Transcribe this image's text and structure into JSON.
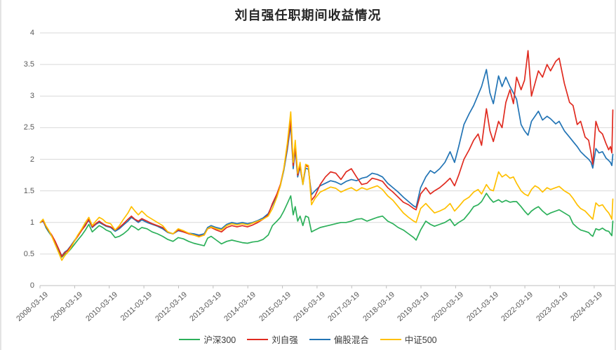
{
  "title": "刘自强任职期间收益情况",
  "colors": {
    "grid": "#d9d9d9",
    "axis": "#bfbfbf",
    "tick_text": "#595959",
    "title_text": "#262626"
  },
  "chart_data": {
    "type": "line",
    "title": "刘自强任职期间收益情况",
    "xlabel": "",
    "ylabel": "",
    "ylim": [
      0,
      4
    ],
    "y_ticks": [
      0,
      0.5,
      1,
      1.5,
      2,
      2.5,
      3,
      3.5,
      4
    ],
    "grid": "horizontal",
    "legend_position": "bottom",
    "x_range": [
      2008.21,
      2024.8
    ],
    "x_ticks": [
      {
        "label": "2008-03-19",
        "year": 2008.21
      },
      {
        "label": "2009-03-19",
        "year": 2009.21
      },
      {
        "label": "2010-03-19",
        "year": 2010.21
      },
      {
        "label": "2011-03-19",
        "year": 2011.21
      },
      {
        "label": "2012-03-19",
        "year": 2012.21
      },
      {
        "label": "2013-03-19",
        "year": 2013.21
      },
      {
        "label": "2014-03-19",
        "year": 2014.21
      },
      {
        "label": "2015-03-19",
        "year": 2015.21
      },
      {
        "label": "2016-03-19",
        "year": 2016.21
      },
      {
        "label": "2017-03-19",
        "year": 2017.21
      },
      {
        "label": "2018-03-19",
        "year": 2018.21
      },
      {
        "label": "2019-03-19",
        "year": 2019.21
      },
      {
        "label": "2020-03-19",
        "year": 2020.21
      },
      {
        "label": "2021-03-19",
        "year": 2021.21
      },
      {
        "label": "2022-03-19",
        "year": 2022.21
      },
      {
        "label": "2023-03-19",
        "year": 2023.21
      },
      {
        "label": "2024-03-19",
        "year": 2024.21
      }
    ],
    "x": [
      2008.22,
      2008.3,
      2008.38,
      2008.46,
      2008.55,
      2008.65,
      2008.75,
      2008.84,
      2008.92,
      2009.0,
      2009.1,
      2009.2,
      2009.3,
      2009.42,
      2009.52,
      2009.62,
      2009.72,
      2009.82,
      2009.92,
      2010.02,
      2010.12,
      2010.25,
      2010.38,
      2010.5,
      2010.62,
      2010.75,
      2010.85,
      2010.95,
      2011.05,
      2011.15,
      2011.3,
      2011.45,
      2011.6,
      2011.75,
      2011.9,
      2012.05,
      2012.2,
      2012.35,
      2012.5,
      2012.65,
      2012.8,
      2012.95,
      2013.05,
      2013.15,
      2013.3,
      2013.45,
      2013.6,
      2013.75,
      2013.9,
      2014.05,
      2014.2,
      2014.35,
      2014.5,
      2014.65,
      2014.8,
      2014.92,
      2015.05,
      2015.15,
      2015.25,
      2015.35,
      2015.45,
      2015.52,
      2015.58,
      2015.65,
      2015.72,
      2015.8,
      2015.88,
      2015.96,
      2016.05,
      2016.15,
      2016.3,
      2016.45,
      2016.6,
      2016.75,
      2016.9,
      2017.05,
      2017.2,
      2017.35,
      2017.5,
      2017.65,
      2017.8,
      2017.95,
      2018.1,
      2018.25,
      2018.4,
      2018.55,
      2018.7,
      2018.85,
      2019.0,
      2019.07,
      2019.2,
      2019.35,
      2019.48,
      2019.6,
      2019.75,
      2019.9,
      2020.05,
      2020.18,
      2020.3,
      2020.45,
      2020.6,
      2020.73,
      2020.86,
      2020.96,
      2021.1,
      2021.2,
      2021.3,
      2021.45,
      2021.55,
      2021.66,
      2021.78,
      2021.88,
      2021.97,
      2022.1,
      2022.2,
      2022.3,
      2022.4,
      2022.5,
      2022.6,
      2022.72,
      2022.85,
      2022.95,
      2023.1,
      2023.2,
      2023.35,
      2023.5,
      2023.6,
      2023.72,
      2023.82,
      2023.95,
      2024.05,
      2024.12,
      2024.17,
      2024.26,
      2024.35,
      2024.45,
      2024.55,
      2024.63,
      2024.68,
      2024.72,
      2024.75
    ],
    "draw_order": [
      0,
      2,
      1,
      3
    ],
    "series": [
      {
        "name": "沪深300",
        "color": "#2cb05a",
        "values": [
          1.0,
          1.04,
          0.92,
          0.85,
          0.78,
          0.68,
          0.55,
          0.45,
          0.5,
          0.52,
          0.58,
          0.65,
          0.72,
          0.8,
          0.88,
          0.97,
          0.85,
          0.9,
          0.95,
          0.92,
          0.88,
          0.85,
          0.76,
          0.78,
          0.82,
          0.88,
          0.95,
          0.92,
          0.88,
          0.92,
          0.9,
          0.85,
          0.82,
          0.78,
          0.73,
          0.7,
          0.76,
          0.74,
          0.7,
          0.67,
          0.65,
          0.63,
          0.75,
          0.78,
          0.72,
          0.66,
          0.7,
          0.72,
          0.7,
          0.68,
          0.67,
          0.69,
          0.7,
          0.73,
          0.8,
          0.95,
          1.02,
          1.08,
          1.18,
          1.3,
          1.42,
          1.12,
          1.25,
          1.02,
          1.1,
          0.95,
          1.1,
          1.08,
          0.85,
          0.88,
          0.92,
          0.94,
          0.96,
          0.98,
          1.0,
          1.0,
          1.02,
          1.05,
          1.06,
          1.02,
          1.05,
          1.08,
          1.1,
          1.02,
          0.98,
          0.92,
          0.88,
          0.82,
          0.76,
          0.72,
          0.88,
          1.02,
          0.97,
          0.94,
          0.97,
          1.0,
          1.05,
          0.95,
          1.0,
          1.05,
          1.15,
          1.25,
          1.28,
          1.33,
          1.46,
          1.38,
          1.32,
          1.36,
          1.32,
          1.35,
          1.32,
          1.33,
          1.33,
          1.25,
          1.18,
          1.12,
          1.18,
          1.22,
          1.25,
          1.18,
          1.12,
          1.15,
          1.18,
          1.2,
          1.15,
          1.1,
          0.98,
          0.92,
          0.88,
          0.86,
          0.84,
          0.8,
          0.78,
          0.9,
          0.88,
          0.91,
          0.87,
          0.86,
          0.82,
          0.79,
          1.02
        ]
      },
      {
        "name": "刘自强",
        "color": "#e02b20",
        "values": [
          1.0,
          1.03,
          0.94,
          0.87,
          0.8,
          0.7,
          0.58,
          0.46,
          0.52,
          0.55,
          0.62,
          0.7,
          0.78,
          0.88,
          0.95,
          1.05,
          0.93,
          0.98,
          1.02,
          0.98,
          0.95,
          0.93,
          0.88,
          0.92,
          0.98,
          1.05,
          1.1,
          1.05,
          1.02,
          1.06,
          1.02,
          0.98,
          0.95,
          0.92,
          0.85,
          0.82,
          0.88,
          0.85,
          0.82,
          0.8,
          0.78,
          0.8,
          0.9,
          0.92,
          0.88,
          0.85,
          0.92,
          0.95,
          0.93,
          0.95,
          0.93,
          0.96,
          1.0,
          1.05,
          1.12,
          1.3,
          1.45,
          1.6,
          1.85,
          2.2,
          2.62,
          1.9,
          2.2,
          1.75,
          1.9,
          1.62,
          1.9,
          1.88,
          1.35,
          1.42,
          1.6,
          1.72,
          1.8,
          1.78,
          1.68,
          1.8,
          1.85,
          1.72,
          1.6,
          1.62,
          1.7,
          1.68,
          1.65,
          1.55,
          1.48,
          1.4,
          1.32,
          1.28,
          1.22,
          1.2,
          1.45,
          1.55,
          1.45,
          1.5,
          1.55,
          1.62,
          1.7,
          1.58,
          1.75,
          2.0,
          2.15,
          2.3,
          2.4,
          2.22,
          2.8,
          2.45,
          2.28,
          2.6,
          2.5,
          2.9,
          3.1,
          2.88,
          3.3,
          3.1,
          3.25,
          3.72,
          3.0,
          3.2,
          3.4,
          3.3,
          3.5,
          3.4,
          3.55,
          3.6,
          3.2,
          2.9,
          2.85,
          2.55,
          2.6,
          2.35,
          2.3,
          2.1,
          1.92,
          2.6,
          2.45,
          2.4,
          2.25,
          2.15,
          2.2,
          2.1,
          2.78
        ]
      },
      {
        "name": "偏股混合",
        "color": "#2274b5",
        "values": [
          1.0,
          1.02,
          0.93,
          0.86,
          0.78,
          0.68,
          0.57,
          0.47,
          0.53,
          0.56,
          0.63,
          0.71,
          0.79,
          0.89,
          0.97,
          1.03,
          0.92,
          0.97,
          1.0,
          0.97,
          0.94,
          0.92,
          0.86,
          0.9,
          0.96,
          1.02,
          1.08,
          1.04,
          1.0,
          1.04,
          1.0,
          0.97,
          0.94,
          0.9,
          0.84,
          0.82,
          0.87,
          0.85,
          0.83,
          0.82,
          0.8,
          0.82,
          0.92,
          0.95,
          0.92,
          0.9,
          0.97,
          1.0,
          0.98,
          1.0,
          0.98,
          1.0,
          1.03,
          1.07,
          1.14,
          1.28,
          1.42,
          1.58,
          1.82,
          2.15,
          2.55,
          1.85,
          2.15,
          1.72,
          1.88,
          1.6,
          1.86,
          1.84,
          1.44,
          1.5,
          1.58,
          1.62,
          1.66,
          1.64,
          1.6,
          1.65,
          1.68,
          1.66,
          1.7,
          1.72,
          1.78,
          1.76,
          1.72,
          1.62,
          1.55,
          1.48,
          1.4,
          1.33,
          1.26,
          1.24,
          1.55,
          1.72,
          1.82,
          1.78,
          1.85,
          1.95,
          2.12,
          1.95,
          2.2,
          2.55,
          2.72,
          2.85,
          3.02,
          3.15,
          3.42,
          3.05,
          2.88,
          3.32,
          3.15,
          3.3,
          3.15,
          3.05,
          2.95,
          2.55,
          2.45,
          2.38,
          2.6,
          2.68,
          2.76,
          2.62,
          2.68,
          2.64,
          2.56,
          2.6,
          2.45,
          2.35,
          2.28,
          2.2,
          2.12,
          2.05,
          2.0,
          1.95,
          1.86,
          2.17,
          2.1,
          2.12,
          2.02,
          1.98,
          1.95,
          1.9,
          2.08
        ]
      },
      {
        "name": "中证500",
        "color": "#ffc000",
        "values": [
          1.0,
          1.05,
          0.95,
          0.88,
          0.78,
          0.65,
          0.52,
          0.4,
          0.47,
          0.52,
          0.6,
          0.7,
          0.8,
          0.9,
          1.0,
          1.08,
          0.95,
          1.02,
          1.08,
          1.05,
          1.0,
          0.98,
          0.88,
          0.95,
          1.05,
          1.15,
          1.25,
          1.18,
          1.12,
          1.18,
          1.1,
          1.05,
          1.0,
          0.95,
          0.85,
          0.82,
          0.9,
          0.87,
          0.83,
          0.8,
          0.77,
          0.8,
          0.9,
          0.93,
          0.9,
          0.88,
          0.95,
          0.98,
          0.96,
          0.98,
          0.96,
          0.99,
          1.02,
          1.05,
          1.1,
          1.22,
          1.4,
          1.58,
          1.85,
          2.25,
          2.75,
          1.95,
          2.3,
          1.78,
          1.95,
          1.6,
          1.92,
          1.9,
          1.28,
          1.38,
          1.48,
          1.52,
          1.56,
          1.54,
          1.48,
          1.52,
          1.55,
          1.5,
          1.55,
          1.52,
          1.55,
          1.58,
          1.52,
          1.42,
          1.35,
          1.25,
          1.15,
          1.08,
          1.02,
          1.0,
          1.22,
          1.3,
          1.22,
          1.15,
          1.18,
          1.22,
          1.3,
          1.18,
          1.25,
          1.35,
          1.4,
          1.48,
          1.52,
          1.45,
          1.6,
          1.52,
          1.5,
          1.8,
          1.72,
          1.76,
          1.7,
          1.72,
          1.62,
          1.5,
          1.45,
          1.42,
          1.52,
          1.58,
          1.55,
          1.48,
          1.55,
          1.52,
          1.55,
          1.57,
          1.5,
          1.45,
          1.38,
          1.28,
          1.22,
          1.18,
          1.12,
          1.08,
          1.05,
          1.31,
          1.26,
          1.28,
          1.2,
          1.15,
          1.1,
          1.05,
          1.37
        ]
      }
    ]
  }
}
